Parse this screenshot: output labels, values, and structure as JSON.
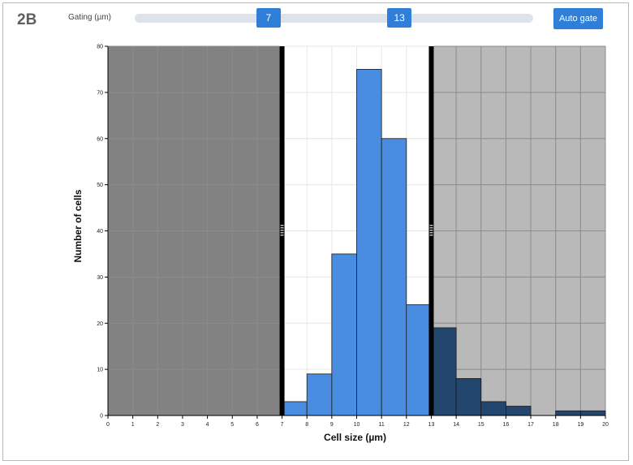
{
  "panel": {
    "label": "2B"
  },
  "gating": {
    "label": "Gating (µm)",
    "low": 7,
    "high": 13,
    "low_label": "7",
    "high_label": "13",
    "auto_button": "Auto gate"
  },
  "colors": {
    "in_gate_bar": "#4a8de0",
    "out_gate_bar": "#23466f",
    "shaded_region": "#7f7f7f",
    "gate_line": "#000000",
    "button": "#2f7fd8"
  },
  "chart_data": {
    "type": "bar",
    "xlabel": "Cell size (µm)",
    "ylabel": "Number of cells",
    "xlim": [
      0,
      20
    ],
    "ylim": [
      0,
      80
    ],
    "x_ticks": [
      0,
      1,
      2,
      3,
      4,
      5,
      6,
      7,
      8,
      9,
      10,
      11,
      12,
      13,
      14,
      15,
      16,
      17,
      18,
      19,
      20
    ],
    "y_ticks": [
      0,
      10,
      20,
      30,
      40,
      50,
      60,
      70,
      80
    ],
    "grid": true,
    "bins": [
      {
        "start": 7,
        "end": 8,
        "count": 3
      },
      {
        "start": 8,
        "end": 9,
        "count": 9
      },
      {
        "start": 9,
        "end": 10,
        "count": 35
      },
      {
        "start": 10,
        "end": 11,
        "count": 75
      },
      {
        "start": 11,
        "end": 12,
        "count": 60
      },
      {
        "start": 12,
        "end": 13,
        "count": 24
      },
      {
        "start": 13,
        "end": 14,
        "count": 19
      },
      {
        "start": 14,
        "end": 15,
        "count": 8
      },
      {
        "start": 15,
        "end": 16,
        "count": 3
      },
      {
        "start": 16,
        "end": 17,
        "count": 2
      },
      {
        "start": 18,
        "end": 19,
        "count": 1
      },
      {
        "start": 19,
        "end": 20,
        "count": 1
      }
    ]
  }
}
